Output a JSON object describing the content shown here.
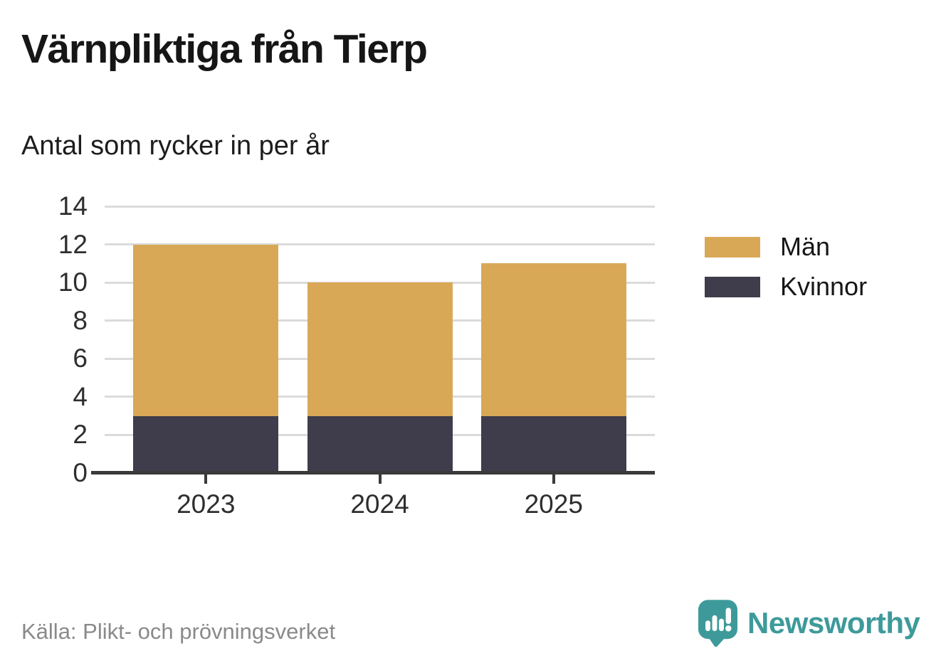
{
  "header": {
    "title": "Värnpliktiga från Tierp",
    "subtitle": "Antal som rycker in per år"
  },
  "chart_data": {
    "type": "bar",
    "stacked": true,
    "title": "Värnpliktiga från Tierp",
    "subtitle": "Antal som rycker in per år",
    "categories": [
      "2023",
      "2024",
      "2025"
    ],
    "series": [
      {
        "name": "Kvinnor",
        "color": "#3F3D4B",
        "values": [
          3,
          3,
          3
        ]
      },
      {
        "name": "Män",
        "color": "#D9A857",
        "values": [
          9,
          7,
          8
        ]
      }
    ],
    "totals": [
      12,
      10,
      11
    ],
    "xlabel": "",
    "ylabel": "",
    "ylim": [
      0,
      14
    ],
    "yticks": [
      0,
      2,
      4,
      6,
      8,
      10,
      12,
      14
    ],
    "grid": true,
    "legend_position": "right"
  },
  "legend": {
    "items": [
      {
        "label": "Män",
        "color": "#D9A857"
      },
      {
        "label": "Kvinnor",
        "color": "#3F3D4B"
      }
    ]
  },
  "footer": {
    "source": "Källa: Plikt- och prövningsverket"
  },
  "brand": {
    "name": "Newsworthy",
    "color": "#3E9A9A",
    "icon": "newsworthy-speech-bubble-chart"
  },
  "colors": {
    "grid": "#DBDBDB",
    "axis": "#3A3A3A",
    "tick_label": "#2e2e2e",
    "title_text": "#161616",
    "source_text": "#8a8a8a"
  }
}
